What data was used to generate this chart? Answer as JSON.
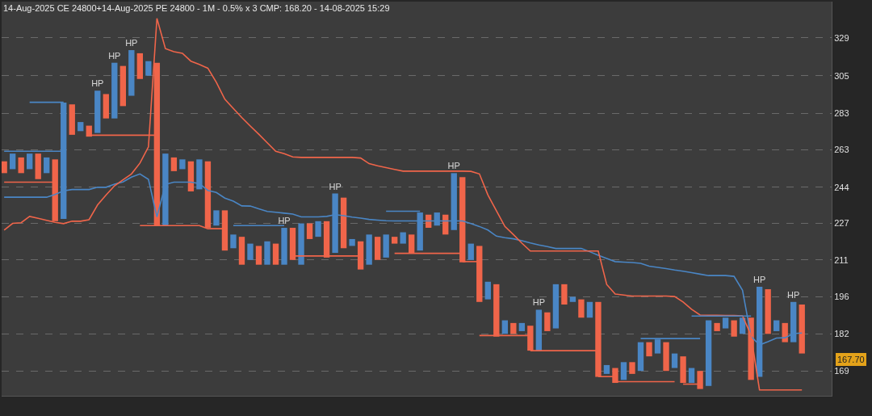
{
  "chart_data": {
    "type": "bar",
    "title": "14-Aug-2025 CE 24800+14-Aug-2025 PE 24800 - 1M - 0.5% x 3 CMP: 168.20 - 14-08-2025 15:29",
    "log": "y",
    "grid": "y",
    "tick_labels": "y",
    "categories": [
      null,
      null,
      null,
      null,
      null,
      null,
      null,
      null,
      null,
      null,
      null,
      null,
      null,
      null,
      null,
      null,
      null,
      null,
      null,
      null,
      null,
      null,
      null,
      null,
      null,
      null,
      null,
      null,
      null,
      null,
      null,
      null,
      null,
      null,
      null,
      null,
      null,
      null,
      null,
      null,
      null,
      null,
      null,
      null,
      null,
      null,
      null,
      null,
      null,
      null,
      null,
      null,
      null,
      null,
      null,
      null,
      null,
      null,
      null,
      null,
      null,
      null,
      null,
      null,
      null,
      null,
      null,
      null,
      null,
      null,
      null,
      null,
      null,
      null,
      null,
      null,
      null,
      null,
      null,
      null,
      null,
      null,
      null,
      null,
      null,
      null,
      null,
      null,
      null,
      null,
      null,
      null,
      null,
      null,
      null
    ],
    "ylim": [
      160.8,
      353.7
    ],
    "yticks": [
      169,
      182,
      196,
      211,
      227,
      244,
      263,
      283,
      305,
      329
    ],
    "series": [
      {
        "base": [
          251,
          253,
          251,
          253,
          248,
          251,
          228,
          229,
          271,
          273,
          270,
          272,
          280,
          280,
          287,
          293,
          303,
          305,
          226,
          226,
          252,
          253,
          242,
          243,
          225,
          226,
          215,
          216,
          209,
          211,
          209,
          209,
          209,
          209,
          211,
          209,
          220,
          221,
          212,
          214,
          216,
          217,
          207,
          209,
          211,
          212,
          218,
          218,
          214,
          215,
          225,
          226,
          222,
          224,
          210,
          211,
          194,
          195,
          181,
          182,
          182,
          183,
          176,
          176,
          183,
          184,
          193,
          194,
          188,
          188,
          167,
          168,
          165,
          166,
          168,
          169,
          174,
          175,
          169,
          170,
          165,
          165,
          163,
          164,
          183,
          184,
          181,
          182,
          166,
          167,
          182,
          183,
          179,
          179,
          175
        ],
        "values": [
          6,
          8,
          8,
          8,
          13,
          8,
          30,
          60,
          17,
          5,
          6,
          24,
          14,
          33,
          24,
          28,
          16,
          9,
          87,
          35,
          7,
          5,
          15,
          15,
          32,
          7,
          18,
          6,
          12,
          7,
          8,
          10,
          9,
          16,
          14,
          18,
          7,
          7,
          16,
          27,
          23,
          3,
          12,
          13,
          10,
          10,
          3,
          5,
          8,
          17,
          6,
          6,
          9,
          27,
          39,
          7,
          23,
          7,
          20,
          5,
          4,
          3,
          9,
          15,
          7,
          17,
          8,
          2,
          7,
          6,
          27,
          3,
          5,
          6,
          4,
          10,
          5,
          5,
          10,
          5,
          9,
          5,
          6,
          23,
          3,
          4,
          6,
          6,
          22,
          33,
          17,
          4,
          7,
          15,
          18
        ],
        "value_labels": [
          null,
          null,
          null,
          null,
          null,
          null,
          null,
          null,
          null,
          null,
          null,
          "HP",
          null,
          "HP",
          null,
          "HP",
          null,
          null,
          null,
          null,
          null,
          null,
          null,
          null,
          null,
          null,
          null,
          null,
          null,
          null,
          null,
          null,
          null,
          "HP",
          null,
          null,
          null,
          null,
          null,
          "HP",
          null,
          null,
          null,
          null,
          null,
          null,
          null,
          null,
          null,
          null,
          null,
          null,
          null,
          "HP",
          null,
          null,
          null,
          null,
          null,
          null,
          null,
          null,
          null,
          "HP",
          null,
          null,
          null,
          null,
          null,
          null,
          null,
          null,
          null,
          null,
          null,
          null,
          null,
          null,
          null,
          null,
          null,
          null,
          null,
          null,
          null,
          null,
          null,
          null,
          null,
          "HP",
          null,
          null,
          null,
          "HP",
          null
        ],
        "colors": [
          "#f0654a",
          "#4a86c5",
          "#f0654a",
          "#4a86c5",
          "#f0654a",
          "#4a86c5",
          "#f0654a",
          "#4a86c5",
          "#f0654a",
          "#4a86c5",
          "#f0654a",
          "#4a86c5",
          "#f0654a",
          "#4a86c5",
          "#f0654a",
          "#4a86c5",
          "#f0654a",
          "#4a86c5",
          "#f0654a",
          "#4a86c5",
          "#f0654a",
          "#4a86c5",
          "#f0654a",
          "#4a86c5",
          "#f0654a",
          "#4a86c5",
          "#f0654a",
          "#4a86c5",
          "#f0654a",
          "#4a86c5",
          "#f0654a",
          "#4a86c5",
          "#f0654a",
          "#4a86c5",
          "#f0654a",
          "#4a86c5",
          "#f0654a",
          "#4a86c5",
          "#f0654a",
          "#4a86c5",
          "#f0654a",
          "#4a86c5",
          "#f0654a",
          "#4a86c5",
          "#f0654a",
          "#4a86c5",
          "#f0654a",
          "#4a86c5",
          "#f0654a",
          "#4a86c5",
          "#f0654a",
          "#4a86c5",
          "#f0654a",
          "#4a86c5",
          "#f0654a",
          "#4a86c5",
          "#f0654a",
          "#4a86c5",
          "#f0654a",
          "#4a86c5",
          "#f0654a",
          "#4a86c5",
          "#f0654a",
          "#4a86c5",
          "#f0654a",
          "#4a86c5",
          "#f0654a",
          "#4a86c5",
          "#f0654a",
          "#4a86c5",
          "#f0654a",
          "#4a86c5",
          "#f0654a",
          "#4a86c5",
          "#f0654a",
          "#4a86c5",
          "#f0654a",
          "#4a86c5",
          "#f0654a",
          "#4a86c5",
          "#f0654a",
          "#4a86c5",
          "#f0654a",
          "#4a86c5",
          "#f0654a",
          "#4a86c5",
          "#f0654a",
          "#4a86c5",
          "#f0654a",
          "#4a86c5",
          "#f0654a",
          "#4a86c5",
          "#f0654a",
          "#4a86c5",
          "#f0654a"
        ]
      },
      {
        "type": "line",
        "color": "#4a86c5",
        "values": [
          239.2,
          239.2,
          239.2,
          239.2,
          239.2,
          239.2,
          240.5,
          242.3,
          242.9,
          242.9,
          242.9,
          244,
          244,
          245.5,
          246.6,
          249,
          250.6,
          247.9,
          230,
          245.4,
          246.5,
          246.5,
          246.5,
          245.8,
          242.5,
          241.5,
          238.8,
          237.3,
          235.1,
          235,
          233.7,
          232.5,
          232.1,
          231.7,
          231.3,
          230,
          230,
          230,
          230.2,
          231,
          230.5,
          229.9,
          229.4,
          228.8,
          228.5,
          228.2,
          228.1,
          228.1,
          228.1,
          228.1,
          228.1,
          228.1,
          228.1,
          228.1,
          228.1,
          226.9,
          225.6,
          224,
          221.3,
          220.6,
          220.1,
          219.3,
          218.3,
          217.4,
          216.7,
          215.9,
          215.9,
          215.9,
          215.9,
          214.5,
          213,
          211.6,
          210.3,
          210.1,
          209.9,
          209.6,
          208.4,
          207.9,
          207.4,
          206.8,
          206.3,
          205.7,
          205.1,
          204.5,
          204.5,
          204.5,
          204.2,
          198.6,
          181.1,
          178,
          179.2,
          180.5,
          180.6,
          182.1,
          182.3
        ]
      },
      {
        "type": "line",
        "color": "#f0654a",
        "values": [
          224,
          227,
          227.3,
          230.2,
          229.3,
          228.4,
          227.5,
          226.9,
          228,
          228,
          228.7,
          235.5,
          240.2,
          244.7,
          247.7,
          250.6,
          256.1,
          264.5,
          342,
          322,
          320,
          319,
          314,
          312,
          309.6,
          301,
          291,
          285.7,
          280.5,
          275.8,
          271.3,
          266.7,
          262.2,
          261,
          259.3,
          259,
          259,
          259,
          259,
          259,
          259,
          259,
          258.7,
          255.8,
          254.7,
          253.8,
          252.9,
          252,
          252,
          252,
          252,
          252,
          252,
          252,
          252,
          251.9,
          250.6,
          240.3,
          232.8,
          225.6,
          222,
          218.2,
          214.8,
          214.8,
          214.8,
          214.8,
          214.8,
          214.8,
          214.8,
          214.8,
          214.8,
          200.9,
          197.1,
          196.7,
          196.3,
          196.3,
          196.3,
          196.3,
          196.3,
          196.1,
          194,
          191.2,
          189,
          188.9,
          188.9,
          188.8,
          188.8,
          188.7,
          181.5,
          162.7,
          162.7,
          162.7,
          162.7,
          162.7,
          162.7
        ]
      },
      {
        "type": "line",
        "color": "#4a86c5",
        "values": [
          null,
          null,
          null,
          289.2,
          289.2,
          289.2,
          289.2,
          289.2,
          null,
          null,
          null,
          null,
          null,
          null,
          null,
          null,
          null,
          null,
          null,
          null,
          null,
          null,
          null,
          null,
          null,
          null,
          null,
          null,
          null,
          null,
          null,
          null,
          null,
          null,
          null,
          null,
          null,
          null,
          null,
          null,
          null,
          null,
          null,
          null,
          null,
          null,
          null,
          null,
          null,
          null,
          null,
          null,
          null,
          null,
          null,
          null,
          null,
          null,
          null,
          null,
          null,
          null,
          null,
          null,
          null,
          null,
          null,
          null,
          null,
          null,
          null,
          null,
          null,
          null,
          null,
          null,
          null,
          null,
          null,
          null,
          null,
          188.6,
          188.6,
          188.6,
          188.6,
          188.6,
          188.6,
          188.6,
          188.6,
          null,
          null,
          null,
          null,
          null,
          null
        ]
      },
      {
        "type": "line",
        "color": "#4a86c5",
        "values": [
          262.2,
          262.2,
          262.2,
          262.2,
          262.2,
          262.2,
          262.2,
          262.2,
          null,
          null,
          null,
          null,
          null,
          null,
          null,
          null,
          null,
          null,
          null,
          null,
          null,
          null,
          null,
          null,
          null,
          null,
          null,
          226,
          226,
          226,
          226,
          226,
          226,
          226,
          null,
          null,
          null,
          null,
          null,
          null,
          null,
          null,
          null,
          null,
          null,
          232.6,
          232.6,
          232.6,
          232.6,
          232.6,
          null,
          null,
          null,
          null,
          null,
          null,
          null,
          null,
          null,
          null,
          null,
          null,
          null,
          null,
          null,
          null,
          null,
          null,
          null,
          null,
          null,
          null,
          null,
          null,
          null,
          180.3,
          180.3,
          180.3,
          180.3,
          180.3,
          180.3,
          180.3,
          180.3,
          null,
          null,
          null,
          null,
          null,
          null,
          null,
          null,
          null,
          null,
          null,
          null
        ]
      },
      {
        "type": "line",
        "color": "#f0654a",
        "values": [
          246.5,
          246.5,
          246.5,
          246.5,
          246.5,
          246.5,
          246.5,
          null,
          null,
          null,
          270.8,
          270.8,
          270.8,
          270.8,
          270.8,
          270.8,
          270.8,
          270.8,
          270.8,
          null,
          null,
          null,
          null,
          null,
          null,
          null,
          null,
          null,
          null,
          null,
          null,
          null,
          null,
          null,
          212.7,
          212.7,
          212.7,
          212.7,
          212.7,
          212.7,
          212.7,
          212.7,
          212.7,
          null,
          null,
          null,
          null,
          null,
          null,
          null,
          null,
          null,
          null,
          null,
          210.3,
          210.3,
          210.3,
          null,
          null,
          null,
          null,
          null,
          176,
          176,
          176,
          176,
          176,
          176,
          176,
          176,
          176,
          null,
          165.4,
          165.4,
          165.4,
          165.4,
          165.4,
          165.4,
          165.4,
          165.4,
          null,
          null,
          null,
          null,
          null,
          null,
          null,
          null,
          null,
          null,
          null,
          null,
          null,
          null,
          null
        ]
      },
      {
        "type": "line",
        "color": "#f0654a",
        "values": [
          null,
          null,
          null,
          null,
          null,
          null,
          null,
          null,
          null,
          null,
          null,
          null,
          null,
          null,
          null,
          null,
          226,
          226,
          226,
          226,
          226,
          226,
          226,
          226,
          224.6,
          224.6,
          224.6,
          null,
          null,
          null,
          null,
          null,
          null,
          null,
          null,
          null,
          null,
          null,
          null,
          null,
          null,
          null,
          null,
          null,
          null,
          null,
          213.8,
          213.8,
          213.8,
          213.8,
          213.8,
          213.8,
          213.8,
          213.8,
          213.8,
          null,
          181.4,
          181.4,
          181.4,
          181.4,
          181.4,
          181.4,
          181.4,
          null,
          null,
          null,
          null,
          null,
          null,
          null,
          167.1,
          167.1,
          167.1,
          null,
          null,
          null,
          null,
          null,
          null,
          null,
          164.6,
          164.6,
          164.6,
          null,
          null,
          null,
          null,
          null,
          null,
          null,
          null,
          null,
          null,
          null,
          null
        ]
      }
    ],
    "annotations": [
      "167.70"
    ]
  }
}
